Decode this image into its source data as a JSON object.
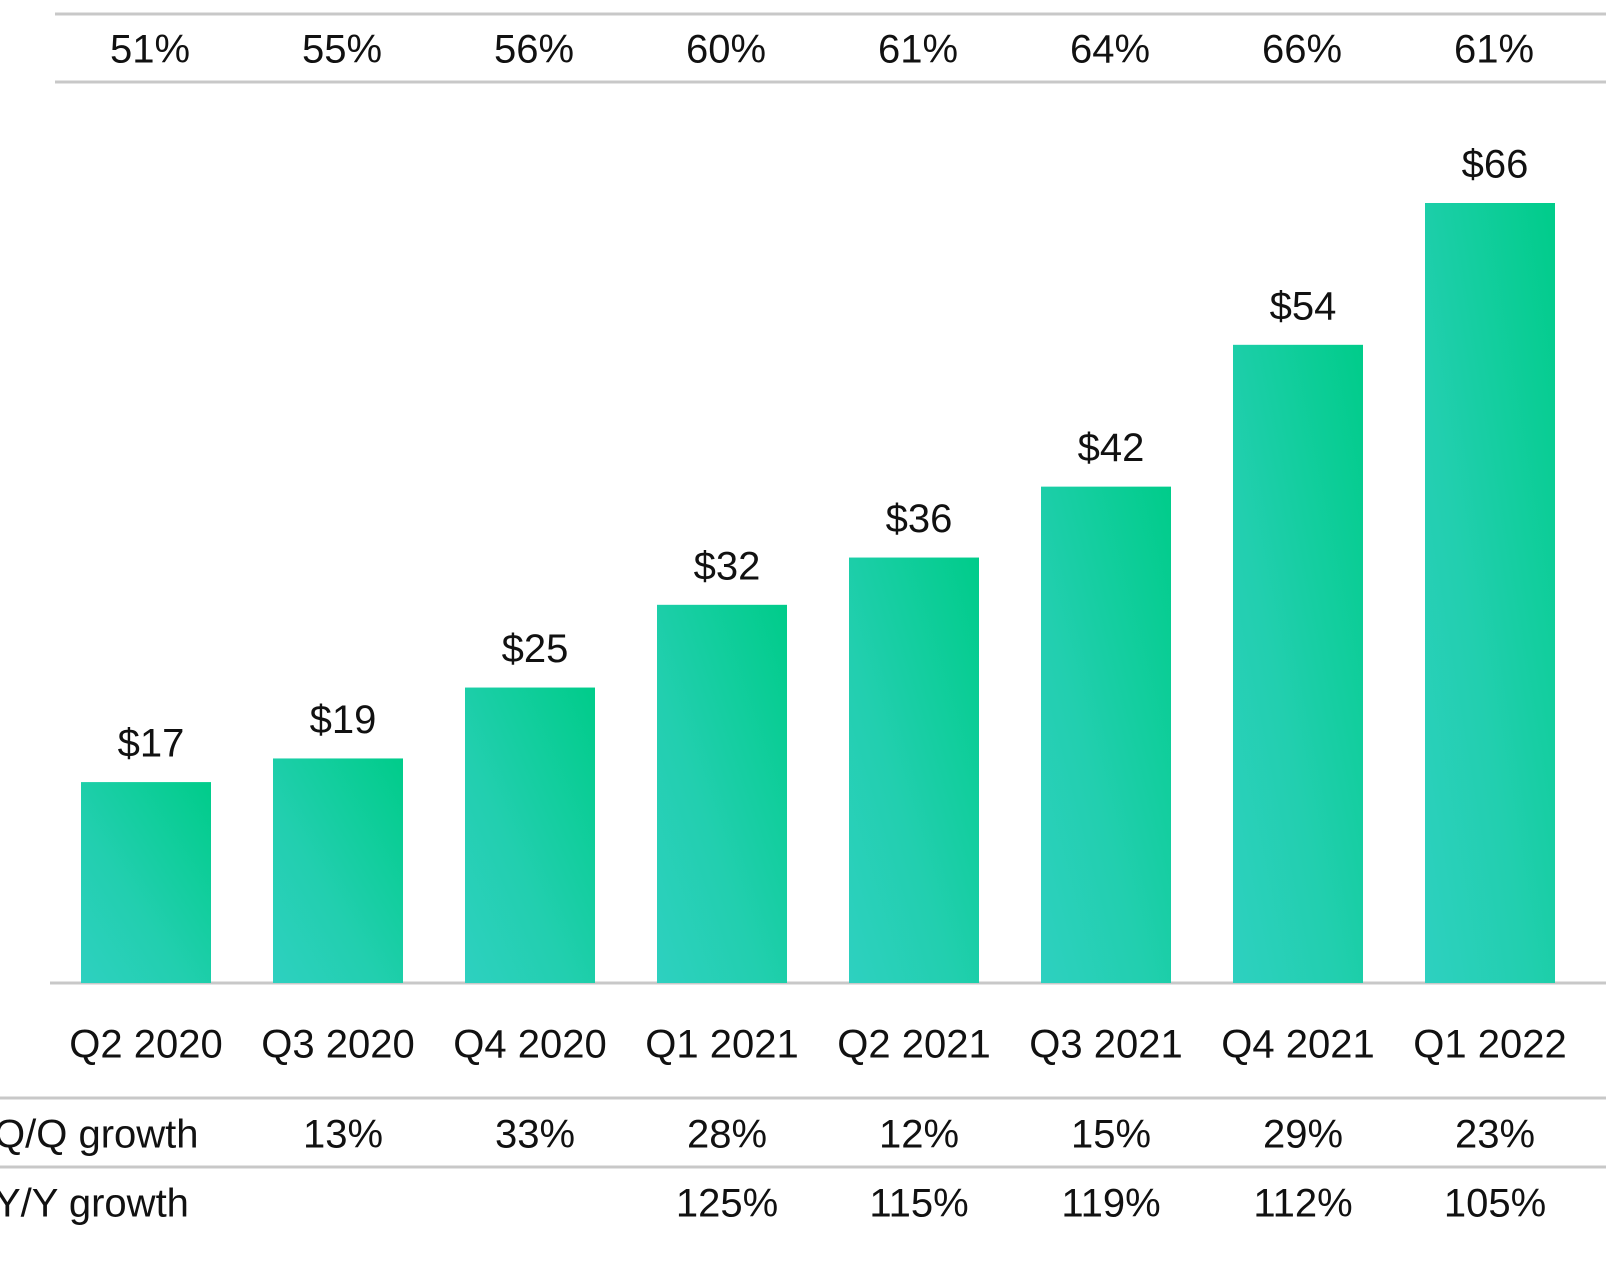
{
  "chart_data": {
    "type": "bar",
    "categories": [
      "Q2 2020",
      "Q3 2020",
      "Q4 2020",
      "Q1 2021",
      "Q2 2021",
      "Q3 2021",
      "Q4 2021",
      "Q1 2022"
    ],
    "values": [
      17,
      19,
      25,
      32,
      36,
      42,
      54,
      66
    ],
    "value_labels": [
      "$17",
      "$19",
      "$25",
      "$32",
      "$36",
      "$42",
      "$54",
      "$66"
    ],
    "color": "#14cf9c",
    "top_row": {
      "values": [
        51,
        55,
        56,
        60,
        61,
        64,
        66,
        61
      ],
      "value_labels": [
        "51%",
        "55%",
        "56%",
        "60%",
        "61%",
        "64%",
        "66%",
        "61%"
      ]
    },
    "rows": [
      {
        "name": "Q/Q growth",
        "values": [
          null,
          13,
          33,
          28,
          12,
          15,
          29,
          23
        ],
        "value_labels": [
          null,
          "13%",
          "33%",
          "28%",
          "12%",
          "15%",
          "29%",
          "23%"
        ]
      },
      {
        "name": "Y/Y growth",
        "values": [
          null,
          null,
          null,
          125,
          115,
          119,
          112,
          105
        ],
        "value_labels": [
          null,
          null,
          null,
          "125%",
          "115%",
          "119%",
          "112%",
          "105%"
        ]
      }
    ]
  }
}
